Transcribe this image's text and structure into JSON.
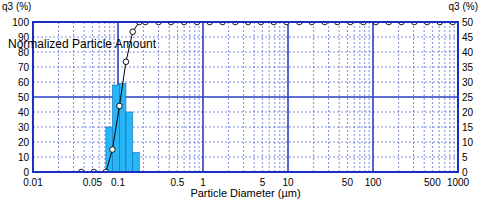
{
  "chart_data": {
    "type": "histogram",
    "annotation": "Normalized Particle Amount",
    "xlabel": "Particle Diameter (µm)",
    "ylabel": "q3 (%)",
    "y2label": "q3 (%)",
    "log": "x",
    "grid": true,
    "xlim": [
      0.01,
      1000
    ],
    "xticks": [
      0.01,
      0.05,
      0.1,
      0.5,
      1,
      5,
      10,
      50,
      100,
      500,
      1000
    ],
    "ylim": [
      0,
      100
    ],
    "yticks": [
      0,
      10,
      20,
      30,
      40,
      50,
      60,
      70,
      80,
      90,
      100
    ],
    "y2lim": [
      0,
      50
    ],
    "y2ticks": [
      0,
      5,
      10,
      15,
      20,
      25,
      30,
      35,
      40,
      45,
      50
    ],
    "series": [
      {
        "type": "bar",
        "axis": "y2",
        "color": "#29b6f6",
        "bins": [
          0.072,
          0.086,
          0.104,
          0.124,
          0.149,
          0.178
        ],
        "values": [
          15,
          29,
          29.5,
          20,
          6.5
        ]
      },
      {
        "type": "line",
        "axis": "y",
        "color": "#000000",
        "marker": "circle",
        "x": [
          0.037,
          0.052,
          0.072,
          0.086,
          0.104,
          0.124,
          0.149,
          0.178,
          0.21,
          0.3,
          0.42,
          0.6,
          0.85,
          1.2,
          1.7,
          2.4,
          3.4,
          4.8,
          6.8,
          9.6,
          13.6,
          19,
          27,
          38,
          54,
          77,
          108,
          153,
          216,
          306,
          433,
          612,
          866
        ],
        "values": [
          0,
          0,
          0,
          15,
          44,
          73.5,
          93.5,
          100,
          100,
          100,
          100,
          100,
          100,
          100,
          100,
          100,
          100,
          100,
          100,
          100,
          100,
          100,
          100,
          100,
          100,
          100,
          100,
          100,
          100,
          100,
          100,
          100,
          100
        ]
      }
    ]
  }
}
